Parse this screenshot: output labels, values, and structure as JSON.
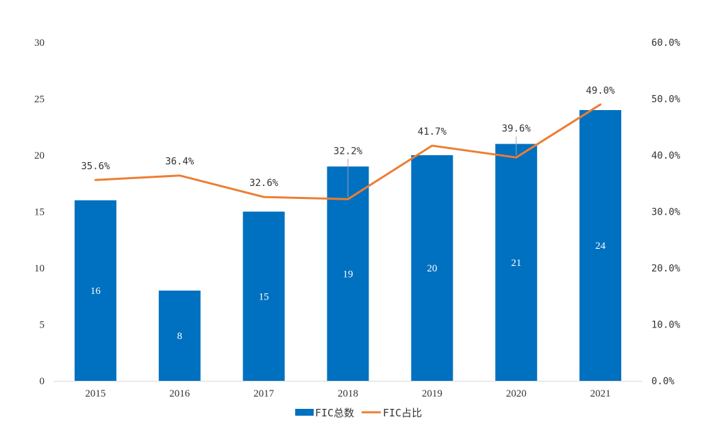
{
  "chart_data": {
    "type": "bar",
    "categories": [
      "2015",
      "2016",
      "2017",
      "2018",
      "2019",
      "2020",
      "2021"
    ],
    "series": [
      {
        "name": "FIC总数",
        "type": "bar",
        "axis": "left",
        "values": [
          16,
          8,
          15,
          19,
          20,
          21,
          24
        ],
        "labels": [
          "16",
          "8",
          "15",
          "19",
          "20",
          "21",
          "24"
        ]
      },
      {
        "name": "FIC占比",
        "type": "line",
        "axis": "right",
        "values": [
          35.6,
          36.4,
          32.6,
          32.2,
          41.7,
          39.6,
          49.0
        ],
        "labels": [
          "35.6%",
          "36.4%",
          "32.6%",
          "32.2%",
          "41.7%",
          "39.6%",
          "49.0%"
        ]
      }
    ],
    "y_left": {
      "range": [
        0,
        30
      ],
      "ticks": [
        "0",
        "5",
        "10",
        "15",
        "20",
        "25",
        "30"
      ]
    },
    "y_right": {
      "range": [
        0,
        60
      ],
      "ticks": [
        "0.0%",
        "10.0%",
        "20.0%",
        "30.0%",
        "40.0%",
        "50.0%",
        "60.0%"
      ]
    },
    "title": "",
    "xlabel": "",
    "ylabel": "",
    "grid": false,
    "legend_position": "bottom",
    "colors": {
      "bar": "#0070C0",
      "line": "#ED7D31",
      "axis": "#D9D9D9"
    }
  }
}
